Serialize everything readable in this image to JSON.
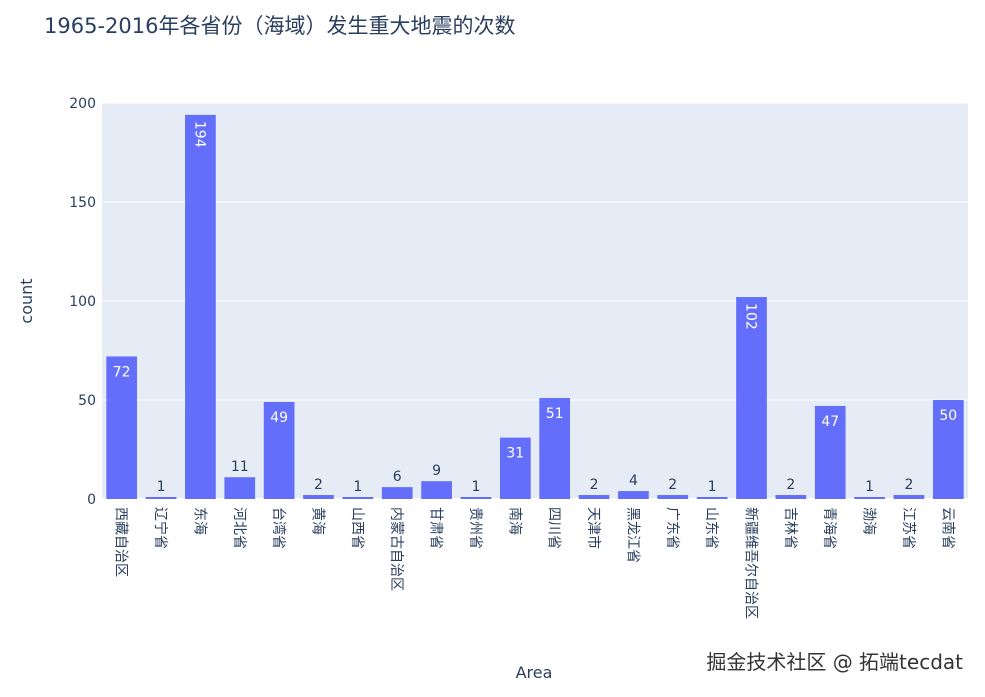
{
  "chart_data": {
    "type": "bar",
    "title": "1965-2016年各省份（海域）发生重大地震的次数",
    "xlabel": "Area",
    "ylabel": "count",
    "ylim": [
      0,
      200
    ],
    "yticks": [
      0,
      50,
      100,
      150,
      200
    ],
    "grid": true,
    "bar_color": "#636efa",
    "plot_bg": "#e5ecf6",
    "categories": [
      "西藏自治区",
      "辽宁省",
      "东海",
      "河北省",
      "台湾省",
      "黄海",
      "山西省",
      "内蒙古自治区",
      "甘肃省",
      "贵州省",
      "南海",
      "四川省",
      "天津市",
      "黑龙江省",
      "广东省",
      "山东省",
      "新疆维吾尔自治区",
      "吉林省",
      "青海省",
      "渤海",
      "江苏省",
      "云南省"
    ],
    "values": [
      72,
      1,
      194,
      11,
      49,
      2,
      1,
      6,
      9,
      1,
      31,
      51,
      2,
      4,
      2,
      1,
      102,
      2,
      47,
      1,
      2,
      50
    ]
  },
  "watermark": "掘金技术社区 @ 拓端tecdat"
}
